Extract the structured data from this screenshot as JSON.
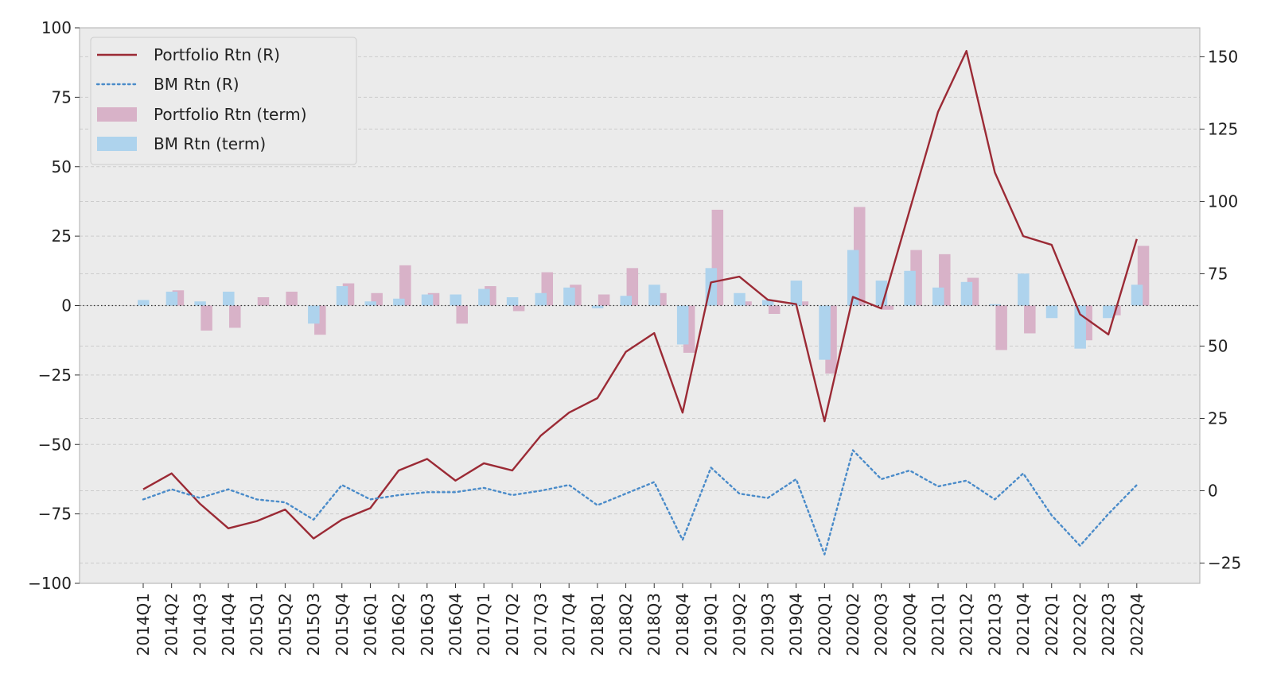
{
  "chart_data": {
    "type": "bar+line",
    "categories": [
      "2014Q1",
      "2014Q2",
      "2014Q3",
      "2014Q4",
      "2015Q1",
      "2015Q2",
      "2015Q3",
      "2015Q4",
      "2016Q1",
      "2016Q2",
      "2016Q3",
      "2016Q4",
      "2017Q1",
      "2017Q2",
      "2017Q3",
      "2017Q4",
      "2018Q1",
      "2018Q2",
      "2018Q3",
      "2018Q4",
      "2019Q1",
      "2019Q2",
      "2019Q3",
      "2019Q4",
      "2020Q1",
      "2020Q2",
      "2020Q3",
      "2020Q4",
      "2021Q1",
      "2021Q2",
      "2021Q3",
      "2021Q4",
      "2022Q1",
      "2022Q2",
      "2022Q3",
      "2022Q4"
    ],
    "left_axis": {
      "ylim": [
        -100,
        100
      ],
      "ticks": [
        "100",
        "75",
        "50",
        "25",
        "0",
        "−25",
        "−50",
        "−75",
        "−100"
      ],
      "tick_values": [
        100,
        75,
        50,
        25,
        0,
        -25,
        -50,
        -75,
        -100
      ]
    },
    "right_axis": {
      "ylim": [
        -32,
        160
      ],
      "ticks": [
        "150",
        "125",
        "100",
        "75",
        "50",
        "25",
        "0",
        "−25"
      ],
      "tick_values": [
        150,
        125,
        100,
        75,
        50,
        25,
        0,
        -25
      ]
    },
    "bar_series": [
      {
        "name": "Portfolio Rtn (term)",
        "axis": "left",
        "color": "#d8b2c8",
        "values": [
          0,
          5.5,
          -9,
          -8,
          3,
          5,
          -10.5,
          8,
          4.5,
          14.5,
          4.5,
          -6.5,
          7,
          -2,
          12,
          7.5,
          4,
          13.5,
          4.5,
          -17,
          34.5,
          1.5,
          -3,
          1.5,
          -24.5,
          35.5,
          -1.5,
          20,
          18.5,
          10,
          -16,
          -10,
          0,
          -12.5,
          -3.5,
          21.5
        ]
      },
      {
        "name": "BM Rtn (term)",
        "axis": "left",
        "color": "#aed3ed",
        "values": [
          2,
          5,
          1.5,
          5,
          0,
          0,
          -6.5,
          7,
          1.5,
          2.5,
          4,
          4,
          6,
          3,
          4.5,
          6.5,
          -1,
          3.5,
          7.5,
          -14,
          13.5,
          4.5,
          2,
          9,
          -19.5,
          20,
          9,
          12.5,
          6.5,
          8.5,
          0.5,
          11.5,
          -4.5,
          -15.5,
          -4.5,
          7.5
        ]
      }
    ],
    "line_series": [
      {
        "name": "Portfolio Rtn (R)",
        "axis": "right",
        "style": "solid",
        "color": "#9b2a35",
        "values": [
          0.5,
          6,
          -4.5,
          -13,
          -10.5,
          -6.5,
          -16.5,
          -10,
          -6,
          7,
          11,
          3.5,
          9.5,
          7,
          19,
          27,
          32,
          48,
          54.5,
          27,
          72,
          74,
          66,
          64.5,
          24,
          67,
          63,
          97,
          131,
          152,
          110,
          88,
          85,
          61,
          54,
          87
        ]
      },
      {
        "name": "BM Rtn (R)",
        "axis": "right",
        "style": "dotted",
        "color": "#4a8bc9",
        "values": [
          -3,
          0.5,
          -2.5,
          0.5,
          -3,
          -4,
          -10,
          2,
          -3,
          -1.5,
          -0.5,
          -0.5,
          1,
          -1.5,
          0,
          2,
          -5,
          -1,
          3,
          -17,
          8,
          -1,
          -2.5,
          4,
          -22,
          14,
          4,
          7,
          1.5,
          3.5,
          -3,
          6,
          -8.5,
          -19,
          -8,
          2
        ]
      }
    ],
    "legend": {
      "position": "upper-left",
      "entries": [
        "Portfolio Rtn (R)",
        "BM Rtn (R)",
        "Portfolio Rtn (term)",
        "BM Rtn (term)"
      ]
    },
    "title": "",
    "xlabel": "",
    "ylabel": "",
    "grid": "horizontal dashed",
    "zero_line": "dotted",
    "colors": {
      "background": "#ebebeb",
      "grid": "#cccccc",
      "frame": "#bbbbbb"
    }
  }
}
